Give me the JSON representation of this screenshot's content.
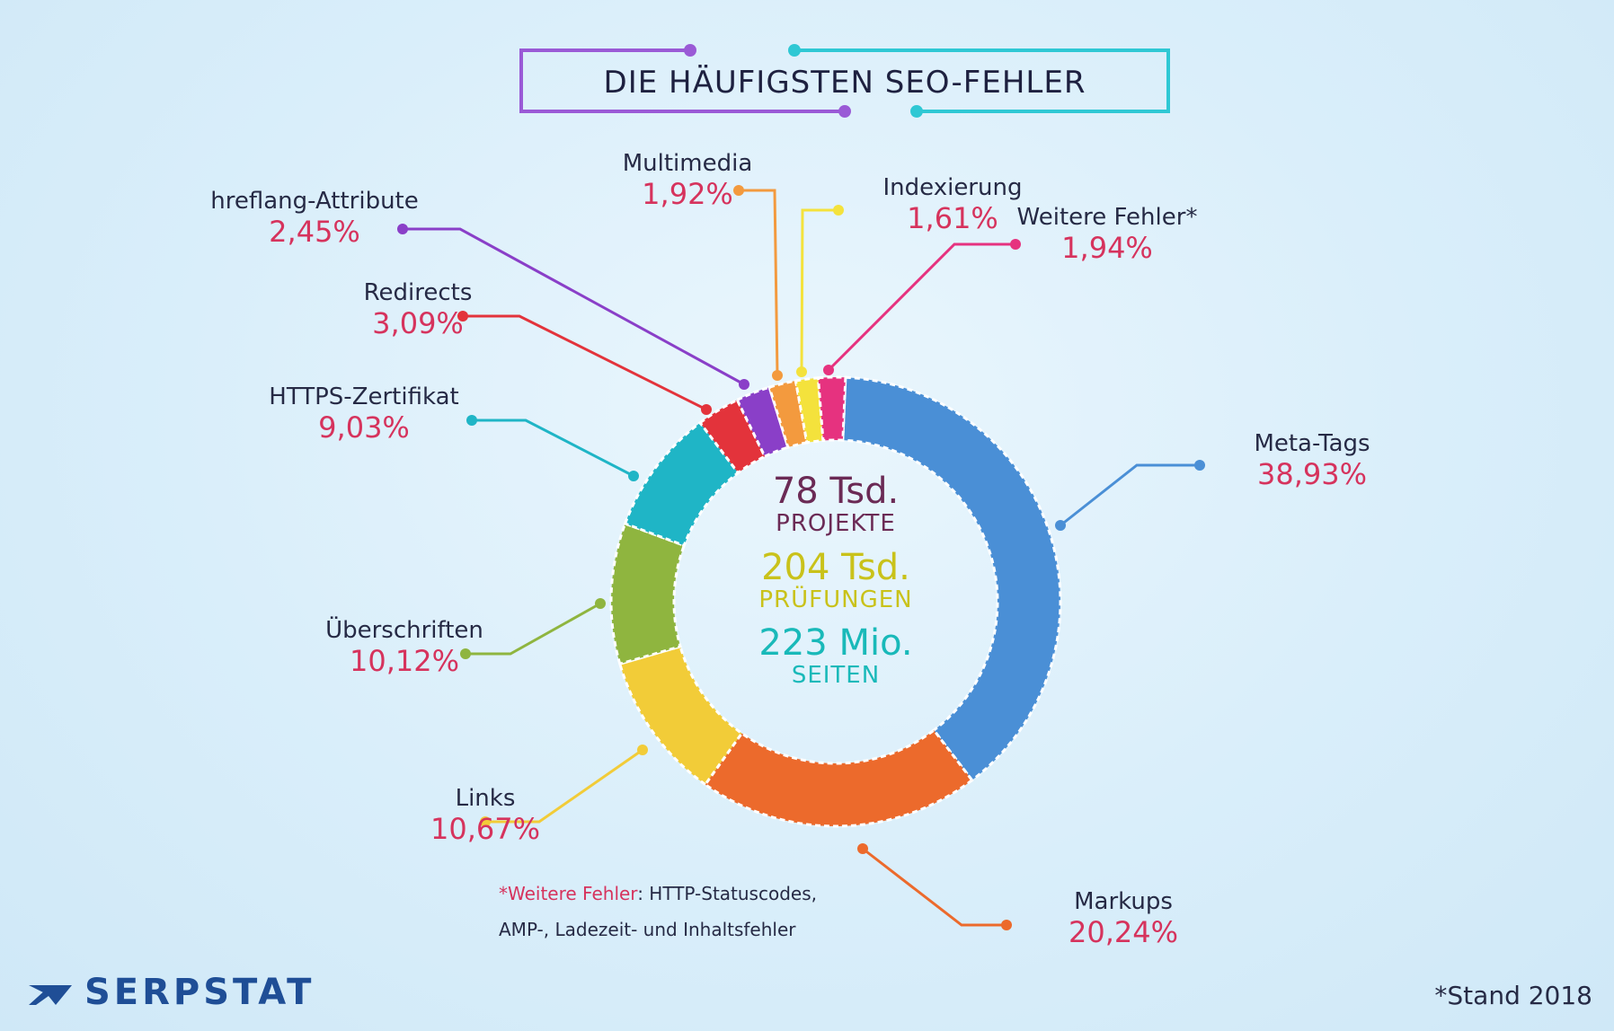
{
  "title": "DIE HÄUFIGSTEN SEO-FEHLER",
  "center": {
    "projects_value": "78 Tsd.",
    "projects_label": "PROJEKTE",
    "checks_value": "204 Tsd.",
    "checks_label": "PRÜFUNGEN",
    "pages_value": "223 Mio.",
    "pages_label": "SEITEN"
  },
  "footnote": {
    "highlight": "*Weitere Fehler",
    "line1_rest": ": HTTP-Statuscodes,",
    "line2": "AMP-, Ladezeit- und Inhaltsfehler"
  },
  "brand": "SERPSTAT",
  "stand": "*Stand 2018",
  "colors": {
    "percent": "#d6335d",
    "projects": "#6b2a55",
    "checks": "#c9c21a",
    "pages": "#19b9b9"
  },
  "chart_data": {
    "type": "pie",
    "categories": [
      "Meta-Tags",
      "Markups",
      "Links",
      "Überschriften",
      "HTTPS-Zertifikat",
      "Redirects",
      "hreflang-Attribute",
      "Multimedia",
      "Indexierung",
      "Weitere Fehler*"
    ],
    "values": [
      38.93,
      20.24,
      10.67,
      10.12,
      9.03,
      3.09,
      2.45,
      1.92,
      1.61,
      1.94
    ],
    "value_labels": [
      "38,93%",
      "20,24%",
      "10,67%",
      "10,12%",
      "9,03%",
      "3,09%",
      "2,45%",
      "1,92%",
      "1,61%",
      "1,94%"
    ],
    "colors": [
      "#4a8fd6",
      "#ec6a2c",
      "#f2cc38",
      "#8fb53f",
      "#1fb5c6",
      "#e3333b",
      "#8a3fc8",
      "#f39a3e",
      "#f4e23c",
      "#e6327f"
    ],
    "donut": true
  }
}
